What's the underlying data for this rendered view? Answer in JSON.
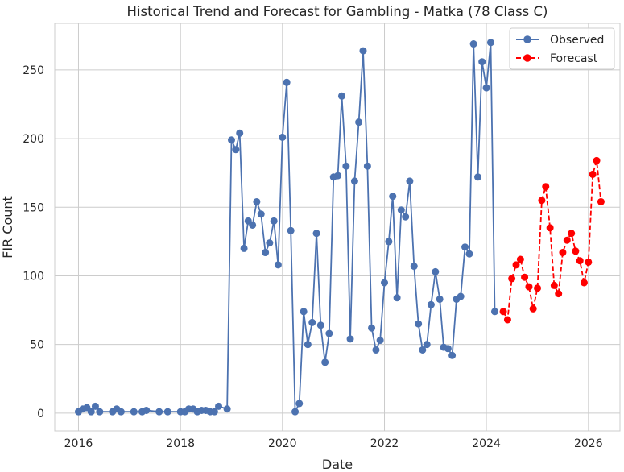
{
  "chart_data": {
    "type": "line",
    "title": "Historical Trend and Forecast for Gambling - Matka (78 Class C)",
    "xlabel": "Date",
    "ylabel": "FIR Count",
    "xlim": [
      "2015-07-15",
      "2026-08-15"
    ],
    "ylim": [
      -13,
      284
    ],
    "x_ticks": [
      "2016",
      "2018",
      "2020",
      "2022",
      "2024",
      "2026"
    ],
    "y_ticks": [
      0,
      50,
      100,
      150,
      200,
      250
    ],
    "grid": true,
    "legend_position": "top-right",
    "series": [
      {
        "name": "Observed",
        "color": "#4c72b0",
        "style": "solid",
        "points": [
          [
            "2016-01-01",
            1
          ],
          [
            "2016-02-01",
            3
          ],
          [
            "2016-03-01",
            4
          ],
          [
            "2016-04-01",
            1
          ],
          [
            "2016-05-01",
            5
          ],
          [
            "2016-06-01",
            1
          ],
          [
            "2016-09-01",
            1
          ],
          [
            "2016-10-01",
            3
          ],
          [
            "2016-11-01",
            1
          ],
          [
            "2017-02-01",
            1
          ],
          [
            "2017-04-01",
            1
          ],
          [
            "2017-05-01",
            2
          ],
          [
            "2017-08-01",
            1
          ],
          [
            "2017-10-01",
            1
          ],
          [
            "2018-01-01",
            1
          ],
          [
            "2018-02-01",
            1
          ],
          [
            "2018-03-01",
            3
          ],
          [
            "2018-04-01",
            3
          ],
          [
            "2018-05-01",
            1
          ],
          [
            "2018-06-01",
            2
          ],
          [
            "2018-07-01",
            2
          ],
          [
            "2018-08-01",
            1
          ],
          [
            "2018-09-01",
            1
          ],
          [
            "2018-10-01",
            5
          ],
          [
            "2018-12-01",
            3
          ],
          [
            "2019-01-01",
            199
          ],
          [
            "2019-02-01",
            192
          ],
          [
            "2019-03-01",
            204
          ],
          [
            "2019-04-01",
            120
          ],
          [
            "2019-05-01",
            140
          ],
          [
            "2019-06-01",
            137
          ],
          [
            "2019-07-01",
            154
          ],
          [
            "2019-08-01",
            145
          ],
          [
            "2019-09-01",
            117
          ],
          [
            "2019-10-01",
            124
          ],
          [
            "2019-11-01",
            140
          ],
          [
            "2019-12-01",
            108
          ],
          [
            "2020-01-01",
            201
          ],
          [
            "2020-02-01",
            241
          ],
          [
            "2020-03-01",
            133
          ],
          [
            "2020-04-01",
            1
          ],
          [
            "2020-05-01",
            7
          ],
          [
            "2020-06-01",
            74
          ],
          [
            "2020-07-01",
            50
          ],
          [
            "2020-08-01",
            66
          ],
          [
            "2020-09-01",
            131
          ],
          [
            "2020-10-01",
            64
          ],
          [
            "2020-11-01",
            37
          ],
          [
            "2020-12-01",
            58
          ],
          [
            "2021-01-01",
            172
          ],
          [
            "2021-02-01",
            173
          ],
          [
            "2021-03-01",
            231
          ],
          [
            "2021-04-01",
            180
          ],
          [
            "2021-05-01",
            54
          ],
          [
            "2021-06-01",
            169
          ],
          [
            "2021-07-01",
            212
          ],
          [
            "2021-08-01",
            264
          ],
          [
            "2021-09-01",
            180
          ],
          [
            "2021-10-01",
            62
          ],
          [
            "2021-11-01",
            46
          ],
          [
            "2021-12-01",
            53
          ],
          [
            "2022-01-01",
            95
          ],
          [
            "2022-02-01",
            125
          ],
          [
            "2022-03-01",
            158
          ],
          [
            "2022-04-01",
            84
          ],
          [
            "2022-05-01",
            148
          ],
          [
            "2022-06-01",
            143
          ],
          [
            "2022-07-01",
            169
          ],
          [
            "2022-08-01",
            107
          ],
          [
            "2022-09-01",
            65
          ],
          [
            "2022-10-01",
            46
          ],
          [
            "2022-11-01",
            50
          ],
          [
            "2022-12-01",
            79
          ],
          [
            "2023-01-01",
            103
          ],
          [
            "2023-02-01",
            83
          ],
          [
            "2023-03-01",
            48
          ],
          [
            "2023-04-01",
            47
          ],
          [
            "2023-05-01",
            42
          ],
          [
            "2023-06-01",
            83
          ],
          [
            "2023-07-01",
            85
          ],
          [
            "2023-08-01",
            121
          ],
          [
            "2023-09-01",
            116
          ],
          [
            "2023-10-01",
            269
          ],
          [
            "2023-11-01",
            172
          ],
          [
            "2023-12-01",
            256
          ],
          [
            "2024-01-01",
            237
          ],
          [
            "2024-02-01",
            270
          ],
          [
            "2024-03-01",
            74
          ]
        ]
      },
      {
        "name": "Forecast",
        "color": "#ff0000",
        "style": "dashed",
        "points": [
          [
            "2024-05-01",
            74
          ],
          [
            "2024-06-01",
            68
          ],
          [
            "2024-07-01",
            98
          ],
          [
            "2024-08-01",
            108
          ],
          [
            "2024-09-01",
            112
          ],
          [
            "2024-10-01",
            99
          ],
          [
            "2024-11-01",
            92
          ],
          [
            "2024-12-01",
            76
          ],
          [
            "2025-01-01",
            91
          ],
          [
            "2025-02-01",
            155
          ],
          [
            "2025-03-01",
            165
          ],
          [
            "2025-04-01",
            135
          ],
          [
            "2025-05-01",
            93
          ],
          [
            "2025-06-01",
            87
          ],
          [
            "2025-07-01",
            117
          ],
          [
            "2025-08-01",
            126
          ],
          [
            "2025-09-01",
            131
          ],
          [
            "2025-10-01",
            118
          ],
          [
            "2025-11-01",
            111
          ],
          [
            "2025-12-01",
            95
          ],
          [
            "2026-01-01",
            110
          ],
          [
            "2026-02-01",
            174
          ],
          [
            "2026-03-01",
            184
          ],
          [
            "2026-04-01",
            154
          ]
        ]
      }
    ]
  }
}
